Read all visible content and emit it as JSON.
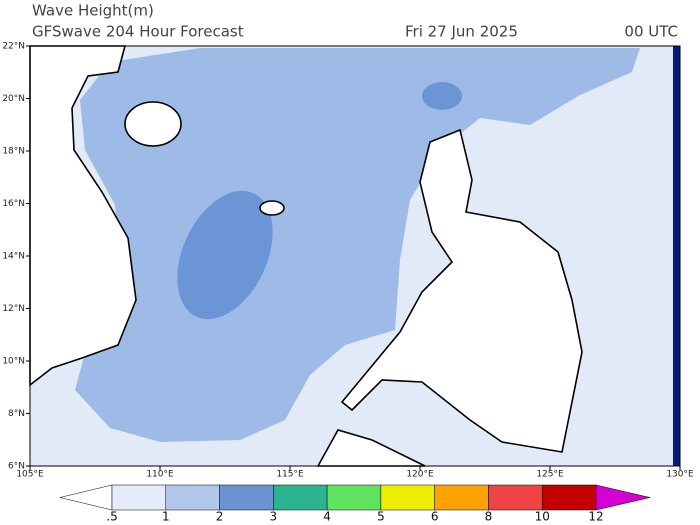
{
  "header": {
    "title": "Wave Height(m)",
    "subtitle": "GFSwave 204 Hour Forecast",
    "date": "Fri 27 Jun 2025",
    "time": "00 UTC"
  },
  "map": {
    "lonlim": [
      105,
      130
    ],
    "latlim": [
      6,
      22
    ],
    "lat_ticks": [
      {
        "value": 22,
        "label": "22°N"
      },
      {
        "value": 20,
        "label": "20°N"
      },
      {
        "value": 18,
        "label": "18°N"
      },
      {
        "value": 16,
        "label": "16°N"
      },
      {
        "value": 14,
        "label": "14°N"
      },
      {
        "value": 12,
        "label": "12°N"
      },
      {
        "value": 10,
        "label": "10°N"
      },
      {
        "value": 8,
        "label": "8°N"
      },
      {
        "value": 6,
        "label": "6°N"
      }
    ],
    "lon_ticks": [
      {
        "value": 105,
        "label": "105°E"
      },
      {
        "value": 110,
        "label": "110°E"
      },
      {
        "value": 115,
        "label": "115°E"
      },
      {
        "value": 120,
        "label": "120°E"
      },
      {
        "value": 125,
        "label": "125°E"
      },
      {
        "value": 130,
        "label": "130°E"
      }
    ]
  },
  "colorbar": {
    "ticks": [
      {
        "value": 0.5,
        "label": ".5"
      },
      1,
      2,
      3,
      4,
      5,
      6,
      8,
      10,
      12
    ],
    "colors": [
      "#ffffff",
      "#e4ecf8",
      "#b2c8eb",
      "#6a93d4",
      "#2cb491",
      "#5fe35f",
      "#eeee00",
      "#ffa200",
      "#f04444",
      "#c40000",
      "#d400d4"
    ]
  }
}
